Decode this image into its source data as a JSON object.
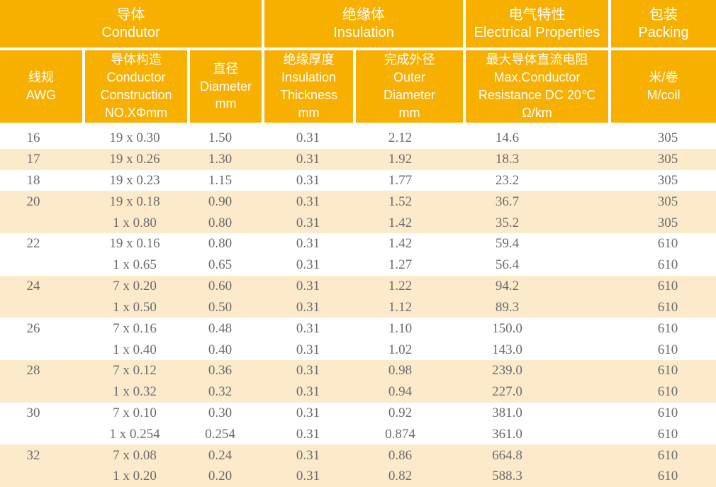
{
  "table": {
    "title_semantic": "AWG wire specification table",
    "colors": {
      "header_orange": "#F7AF00",
      "stripe_cream": "#FCEACB",
      "header_text": "#FFFFFF",
      "data_text": "#6B6B6B"
    },
    "groups": [
      {
        "zh": "导体",
        "en": "Condutor"
      },
      {
        "zh": "绝缘体",
        "en": "Insulation"
      },
      {
        "zh": "电气特性",
        "en": "Electrical Properties"
      },
      {
        "zh": "包装",
        "en": "Packing"
      }
    ],
    "columns": [
      {
        "id": "awg",
        "label": "线规\nAWG"
      },
      {
        "id": "construction",
        "label": "导体构造\nConductor\nConstruction\nNO.XΦmm"
      },
      {
        "id": "diameter",
        "label": "直径\nDiameter\nmm"
      },
      {
        "id": "thickness",
        "label": "绝缘厚度\nInsulation\nThickness\nmm"
      },
      {
        "id": "outer",
        "label": "完成外径\nOuter\nDiameter\nmm"
      },
      {
        "id": "resistance",
        "label": "最大导体直流电阻\nMax.Conductor\nResistance DC 20℃\nΩ/km"
      },
      {
        "id": "coil",
        "label": "米/卷\nM/coil"
      }
    ],
    "rows": [
      {
        "awg": "16",
        "construction": "19 x 0.30",
        "diameter": "1.50",
        "thickness": "0.31",
        "outer": "2.12",
        "resistance": "14.6",
        "coil": "305",
        "shaded": false
      },
      {
        "awg": "17",
        "construction": "19 x 0.26",
        "diameter": "1.30",
        "thickness": "0.31",
        "outer": "1.92",
        "resistance": "18.3",
        "coil": "305",
        "shaded": true
      },
      {
        "awg": "18",
        "construction": "19 x 0.23",
        "diameter": "1.15",
        "thickness": "0.31",
        "outer": "1.77",
        "resistance": "23.2",
        "coil": "305",
        "shaded": false
      },
      {
        "awg": "20",
        "construction": "19 x 0.18",
        "diameter": "0.90",
        "thickness": "0.31",
        "outer": "1.52",
        "resistance": "36.7",
        "coil": "305",
        "shaded": true
      },
      {
        "awg": "",
        "construction": "1 x 0.80",
        "diameter": "0.80",
        "thickness": "0.31",
        "outer": "1.42",
        "resistance": "35.2",
        "coil": "305",
        "shaded": true
      },
      {
        "awg": "22",
        "construction": "19 x 0.16",
        "diameter": "0.80",
        "thickness": "0.31",
        "outer": "1.42",
        "resistance": "59.4",
        "coil": "610",
        "shaded": false
      },
      {
        "awg": "",
        "construction": "1 x 0.65",
        "diameter": "0.65",
        "thickness": "0.31",
        "outer": "1.27",
        "resistance": "56.4",
        "coil": "610",
        "shaded": false
      },
      {
        "awg": "24",
        "construction": "7 x 0.20",
        "diameter": "0.60",
        "thickness": "0.31",
        "outer": "1.22",
        "resistance": "94.2",
        "coil": "610",
        "shaded": true
      },
      {
        "awg": "",
        "construction": "1 x 0.50",
        "diameter": "0.50",
        "thickness": "0.31",
        "outer": "1.12",
        "resistance": "89.3",
        "coil": "610",
        "shaded": true
      },
      {
        "awg": "26",
        "construction": "7 x 0.16",
        "diameter": "0.48",
        "thickness": "0.31",
        "outer": "1.10",
        "resistance": "150.0",
        "coil": "610",
        "shaded": false
      },
      {
        "awg": "",
        "construction": "1 x 0.40",
        "diameter": "0.40",
        "thickness": "0.31",
        "outer": "1.02",
        "resistance": "143.0",
        "coil": "610",
        "shaded": false
      },
      {
        "awg": "28",
        "construction": "7 x 0.12",
        "diameter": "0.36",
        "thickness": "0.31",
        "outer": "0.98",
        "resistance": "239.0",
        "coil": "610",
        "shaded": true
      },
      {
        "awg": "",
        "construction": "1 x 0.32",
        "diameter": "0.32",
        "thickness": "0.31",
        "outer": "0.94",
        "resistance": "227.0",
        "coil": "610",
        "shaded": true
      },
      {
        "awg": "30",
        "construction": "7 x 0.10",
        "diameter": "0.30",
        "thickness": "0.31",
        "outer": "0.92",
        "resistance": "381.0",
        "coil": "610",
        "shaded": false
      },
      {
        "awg": "",
        "construction": "1 x 0.254",
        "diameter": "0.254",
        "thickness": "0.31",
        "outer": "0.874",
        "resistance": "361.0",
        "coil": "610",
        "shaded": false
      },
      {
        "awg": "32",
        "construction": "7 x 0.08",
        "diameter": "0.24",
        "thickness": "0.31",
        "outer": "0.86",
        "resistance": "664.8",
        "coil": "610",
        "shaded": true
      },
      {
        "awg": "",
        "construction": "1 x 0.20",
        "diameter": "0.20",
        "thickness": "0.31",
        "outer": "0.82",
        "resistance": "588.3",
        "coil": "610",
        "shaded": true
      }
    ]
  }
}
